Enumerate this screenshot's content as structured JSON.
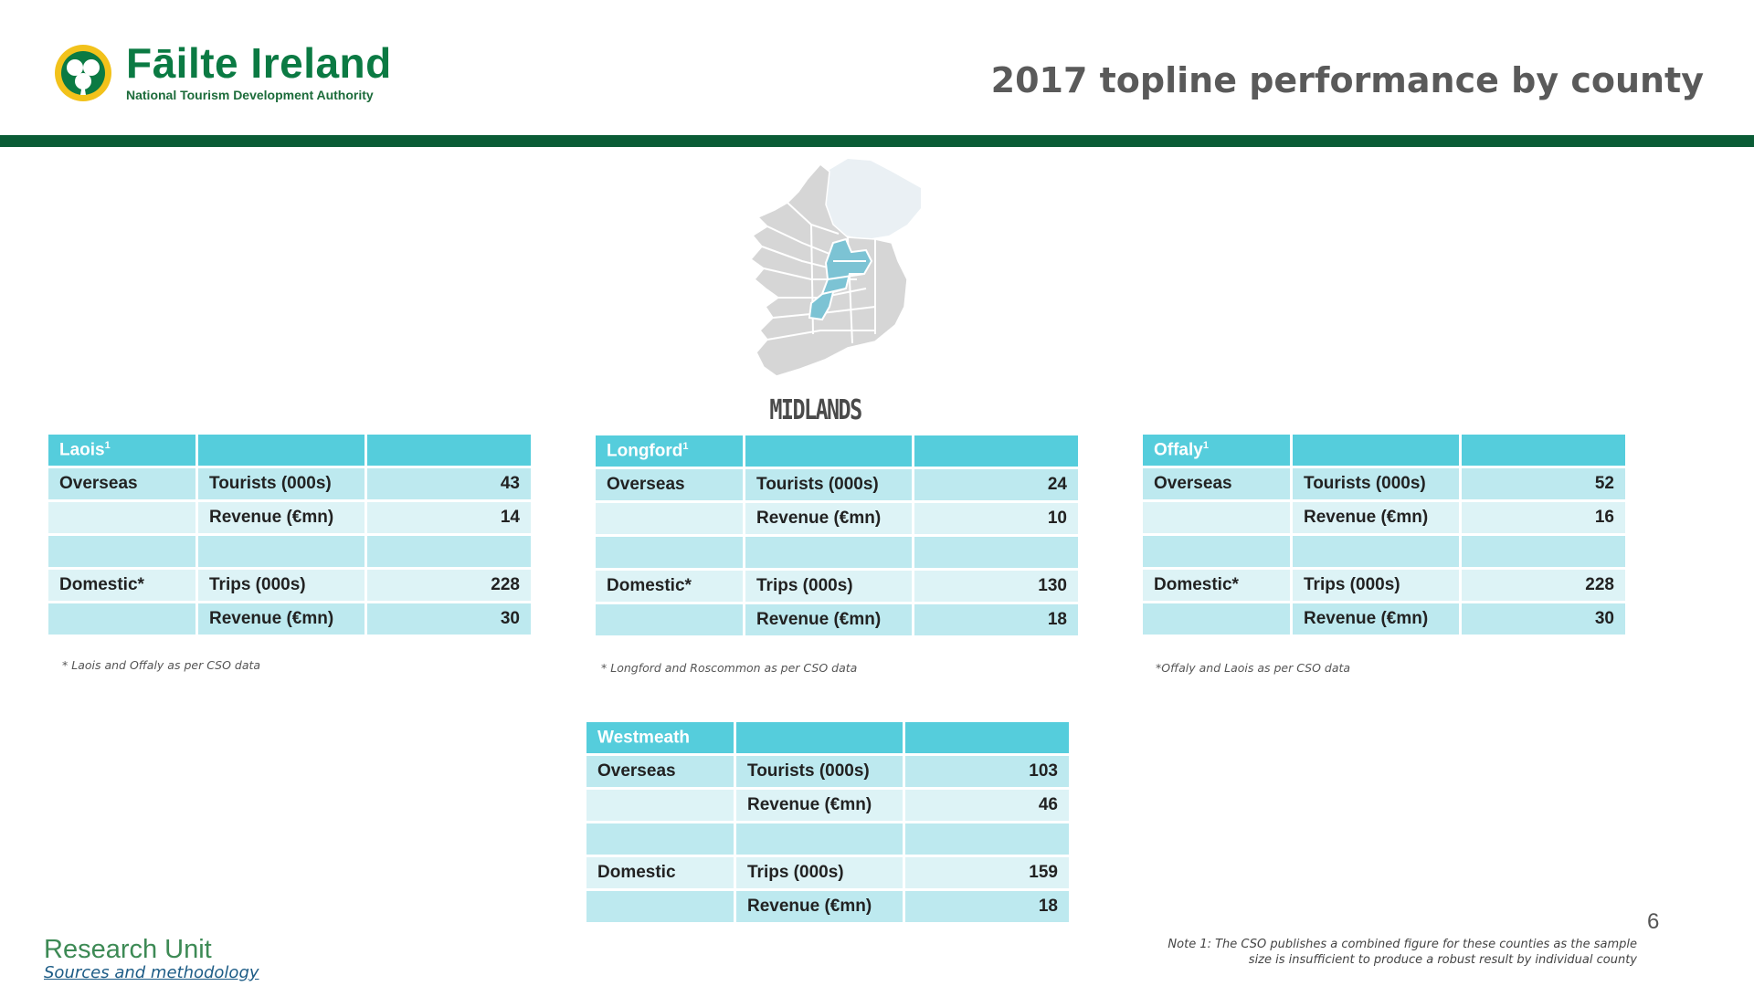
{
  "header": {
    "brand_name": "Fāilte Ireland",
    "brand_subtitle": "National Tourism Development Authority",
    "title": "2017 topline performance by county"
  },
  "map": {
    "region_label": "MIDLANDS"
  },
  "counties": [
    {
      "name": "Laois",
      "sup": "1",
      "rows": [
        {
          "segment": "Overseas",
          "metric": "Tourists (000s)",
          "value": "43"
        },
        {
          "segment": "",
          "metric": "Revenue (€mn)",
          "value": "14"
        },
        {
          "segment": "",
          "metric": "",
          "value": ""
        },
        {
          "segment": "Domestic*",
          "metric": "Trips (000s)",
          "value": "228"
        },
        {
          "segment": "",
          "metric": "Revenue (€mn)",
          "value": "30"
        }
      ],
      "footnote": "* Laois and Offaly as per CSO data"
    },
    {
      "name": "Longford",
      "sup": "1",
      "rows": [
        {
          "segment": "Overseas",
          "metric": "Tourists (000s)",
          "value": "24"
        },
        {
          "segment": "",
          "metric": "Revenue (€mn)",
          "value": "10"
        },
        {
          "segment": "",
          "metric": "",
          "value": ""
        },
        {
          "segment": "Domestic*",
          "metric": "Trips (000s)",
          "value": "130"
        },
        {
          "segment": "",
          "metric": "Revenue (€mn)",
          "value": "18"
        }
      ],
      "footnote": "* Longford and Roscommon as per CSO data"
    },
    {
      "name": "Offaly",
      "sup": "1",
      "rows": [
        {
          "segment": "Overseas",
          "metric": "Tourists (000s)",
          "value": "52"
        },
        {
          "segment": "",
          "metric": "Revenue (€mn)",
          "value": "16"
        },
        {
          "segment": "",
          "metric": "",
          "value": ""
        },
        {
          "segment": "Domestic*",
          "metric": "Trips (000s)",
          "value": "228"
        },
        {
          "segment": "",
          "metric": "Revenue (€mn)",
          "value": "30"
        }
      ],
      "footnote": "*Offaly and Laois as per CSO data"
    },
    {
      "name": "Westmeath",
      "sup": "",
      "rows": [
        {
          "segment": "Overseas",
          "metric": "Tourists (000s)",
          "value": "103"
        },
        {
          "segment": "",
          "metric": "Revenue (€mn)",
          "value": "46"
        },
        {
          "segment": "",
          "metric": "",
          "value": ""
        },
        {
          "segment": "Domestic",
          "metric": "Trips (000s)",
          "value": "159"
        },
        {
          "segment": "",
          "metric": "Revenue (€mn)",
          "value": "18"
        }
      ],
      "footnote": ""
    }
  ],
  "footer": {
    "research_unit": "Research Unit",
    "sources_link": "Sources and methodology",
    "page_number": "6",
    "note_line1": "Note 1: The CSO publishes a combined figure for these counties as the sample",
    "note_line2": "size is insufficient to produce a robust result by individual county"
  },
  "colors": {
    "brand_green": "#0a5c36",
    "table_header": "#55cddc",
    "table_row_dark": "#bde9ef",
    "table_row_light": "#ddf3f6",
    "map_highlight": "#7cc3d4",
    "map_base": "#d6d6d6"
  }
}
